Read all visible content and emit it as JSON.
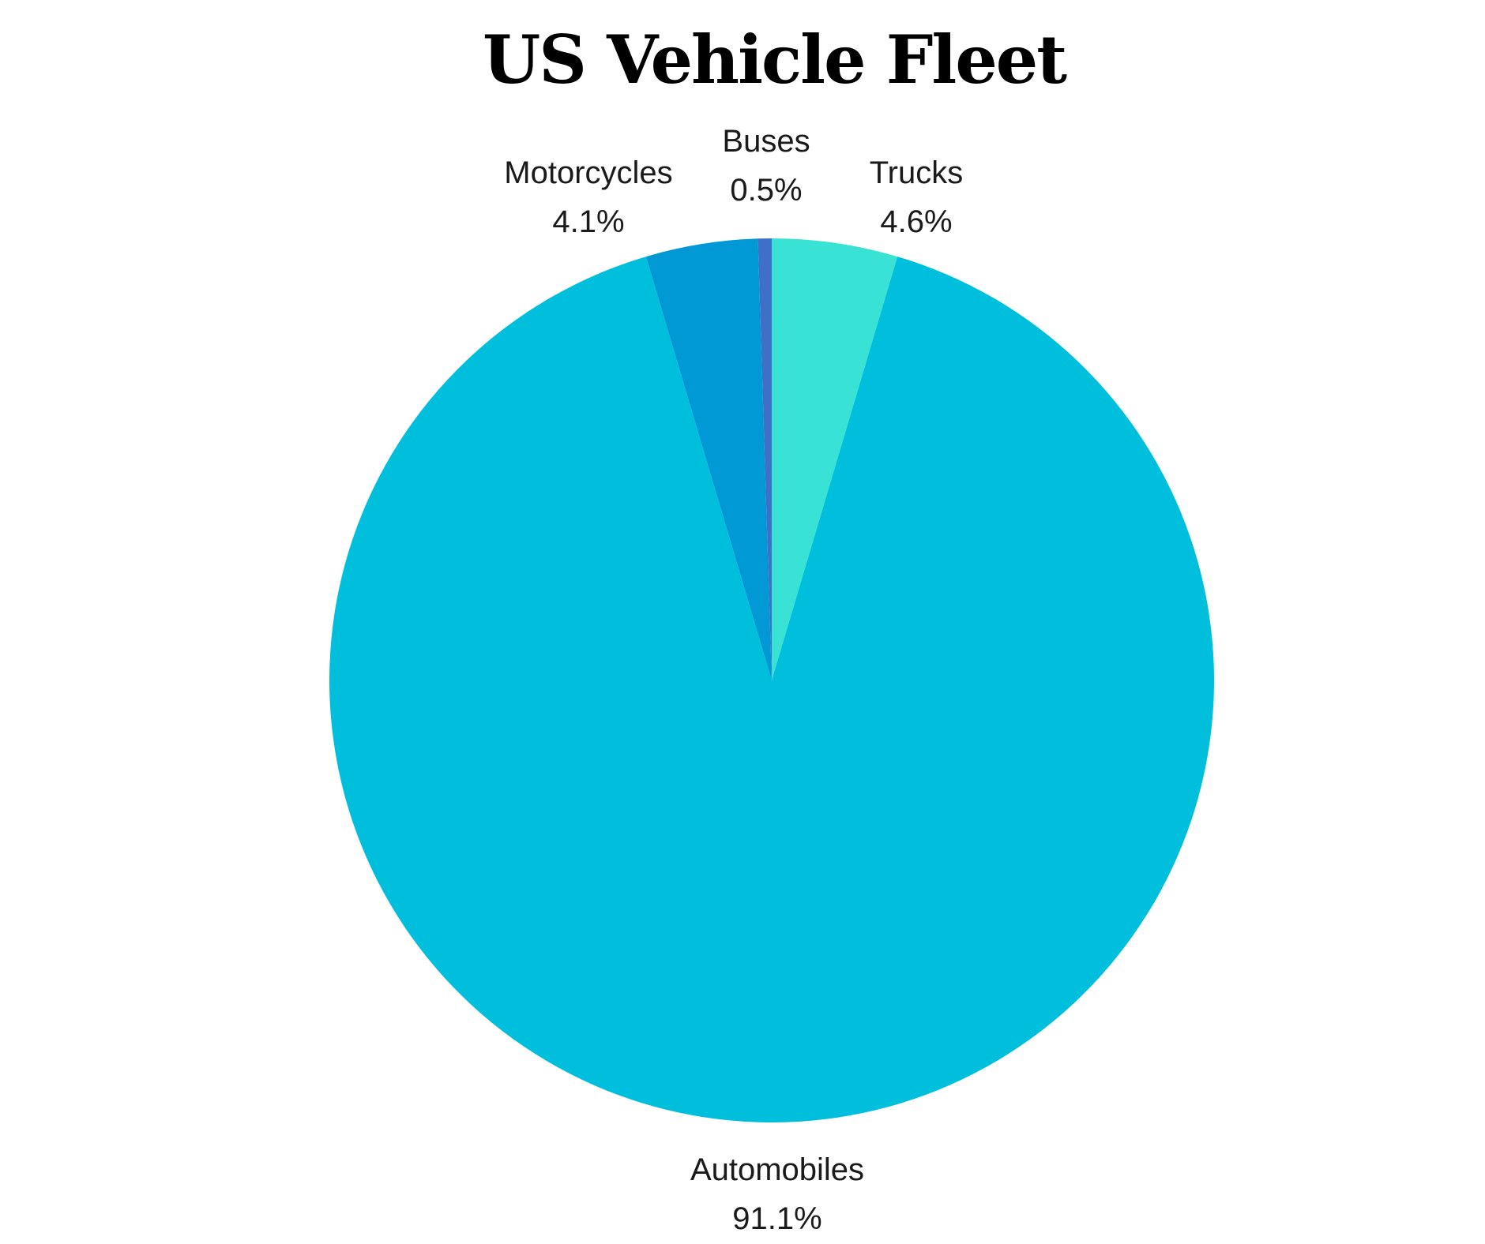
{
  "chart_data": {
    "type": "pie",
    "title": "US Vehicle Fleet",
    "start_angle_deg": 0,
    "direction": "clockwise",
    "slices": [
      {
        "label": "Trucks",
        "value": 4.6,
        "value_label": "4.6%",
        "color": "#38e2d4"
      },
      {
        "label": "Automobiles",
        "value": 91.1,
        "value_label": "91.1%",
        "color": "#00bfdd"
      },
      {
        "label": "Motorcycles",
        "value": 4.1,
        "value_label": "4.1%",
        "color": "#0099d6"
      },
      {
        "label": "Buses",
        "value": 0.5,
        "value_label": "0.5%",
        "color": "#3f6fc6"
      }
    ],
    "legend": "none",
    "labels": "outside"
  }
}
